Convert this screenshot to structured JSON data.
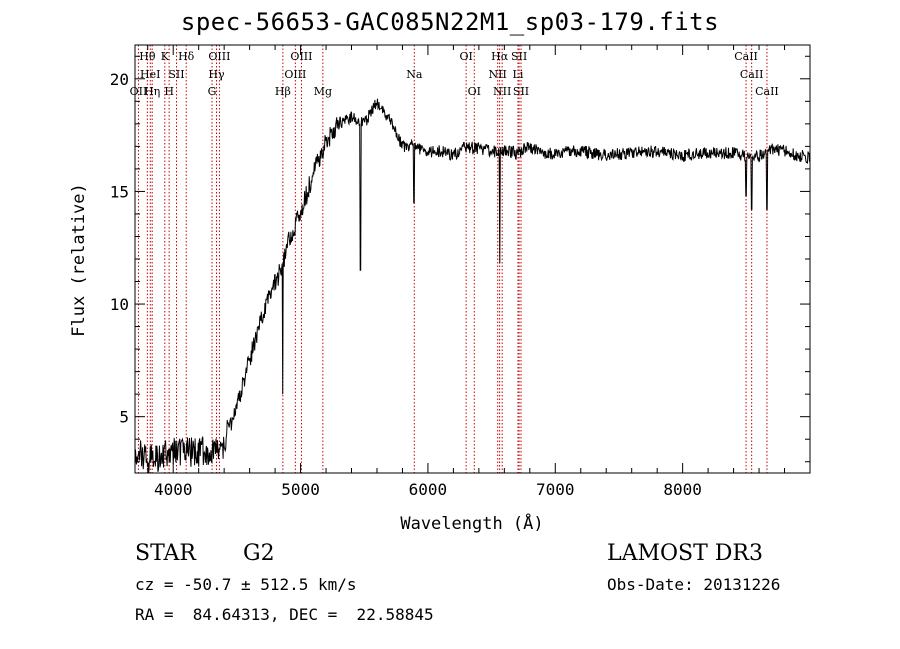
{
  "chart_data": {
    "type": "line",
    "title": "spec-56653-GAC085N22M1_sp03-179.fits",
    "xlabel": "Wavelength (Å)",
    "ylabel": "Flux (relative)",
    "xlim": [
      3700,
      9000
    ],
    "ylim": [
      2.5,
      21.5
    ],
    "xticks": [
      4000,
      5000,
      6000,
      7000,
      8000
    ],
    "xtick_labels": [
      "4000",
      "5000",
      "6000",
      "7000",
      "8000"
    ],
    "yticks": [
      5,
      10,
      15,
      20
    ],
    "ytick_labels": [
      "5",
      "10",
      "15",
      "20"
    ],
    "grid": false,
    "series": [
      {
        "name": "spectrum",
        "x": [
          3700,
          3800,
          3900,
          4000,
          4100,
          4200,
          4300,
          4400,
          4500,
          4600,
          4700,
          4800,
          4850,
          4900,
          5000,
          5100,
          5200,
          5300,
          5400,
          5500,
          5600,
          5700,
          5800,
          5900,
          6000,
          6100,
          6200,
          6300,
          6400,
          6500,
          6550,
          6600,
          6700,
          6800,
          6900,
          7000,
          7200,
          7400,
          7600,
          7800,
          8000,
          8200,
          8400,
          8500,
          8600,
          8700,
          8800,
          8900,
          9000
        ],
        "y": [
          3.5,
          3.0,
          3.3,
          3.4,
          3.5,
          3.4,
          3.6,
          3.8,
          5.5,
          7.5,
          9.5,
          11.0,
          11.5,
          12.8,
          14.0,
          15.8,
          17.2,
          18.0,
          18.3,
          18.0,
          19.0,
          18.2,
          17.0,
          17.0,
          16.7,
          16.8,
          16.6,
          17.0,
          16.9,
          16.8,
          16.7,
          16.8,
          16.7,
          17.0,
          16.7,
          16.7,
          16.8,
          16.6,
          16.7,
          16.8,
          16.6,
          16.7,
          16.7,
          16.6,
          16.6,
          16.9,
          16.8,
          16.6,
          16.5
        ]
      }
    ],
    "absorption_dips": [
      {
        "x": 4861,
        "y": 6.0
      },
      {
        "x": 5470,
        "y": 11.5
      },
      {
        "x": 5890,
        "y": 14.5
      },
      {
        "x": 6563,
        "y": 11.8
      },
      {
        "x": 8498,
        "y": 14.8
      },
      {
        "x": 8542,
        "y": 14.2
      },
      {
        "x": 8662,
        "y": 14.2
      }
    ],
    "line_markers": [
      {
        "wave": 3797,
        "label": "Hθ",
        "row": 0
      },
      {
        "wave": 3727,
        "label": "OII",
        "row": 2
      },
      {
        "wave": 3820,
        "label": "HeI",
        "row": 1
      },
      {
        "wave": 3835,
        "label": "Hη",
        "row": 2
      },
      {
        "wave": 3934,
        "label": "K",
        "row": 0
      },
      {
        "wave": 3968,
        "label": "H",
        "row": 2
      },
      {
        "wave": 4026,
        "label": "SII",
        "row": 1
      },
      {
        "wave": 4102,
        "label": "Hδ",
        "row": 0
      },
      {
        "wave": 4305,
        "label": "G",
        "row": 2
      },
      {
        "wave": 4340,
        "label": "Hγ",
        "row": 1
      },
      {
        "wave": 4363,
        "label": "OIII",
        "row": 0
      },
      {
        "wave": 4861,
        "label": "Hβ",
        "row": 2
      },
      {
        "wave": 4959,
        "label": "OIII",
        "row": 1
      },
      {
        "wave": 5007,
        "label": "OIII",
        "row": 0
      },
      {
        "wave": 5175,
        "label": "Mg",
        "row": 2
      },
      {
        "wave": 5893,
        "label": "Na",
        "row": 1
      },
      {
        "wave": 6300,
        "label": "OI",
        "row": 0
      },
      {
        "wave": 6364,
        "label": "OI",
        "row": 2
      },
      {
        "wave": 6548,
        "label": "NII",
        "row": 1
      },
      {
        "wave": 6563,
        "label": "Hα",
        "row": 0
      },
      {
        "wave": 6583,
        "label": "NII",
        "row": 2
      },
      {
        "wave": 6707,
        "label": "Li",
        "row": 1
      },
      {
        "wave": 6716,
        "label": "SII",
        "row": 0
      },
      {
        "wave": 6731,
        "label": "SII",
        "row": 2
      },
      {
        "wave": 8498,
        "label": "CaII",
        "row": 0
      },
      {
        "wave": 8542,
        "label": "CaII",
        "row": 1
      },
      {
        "wave": 8662,
        "label": "CaII",
        "row": 2
      }
    ],
    "colors": {
      "line": "#000000",
      "marker": "#cc0000"
    }
  },
  "info": {
    "class_label": "STAR",
    "subclass": "G2",
    "survey": "LAMOST DR3",
    "cz": "cz = -50.7 ± 512.5 km/s",
    "obs_date": "Obs-Date: 20131226",
    "radec": "RA =  84.64313, DEC =  22.58845"
  }
}
